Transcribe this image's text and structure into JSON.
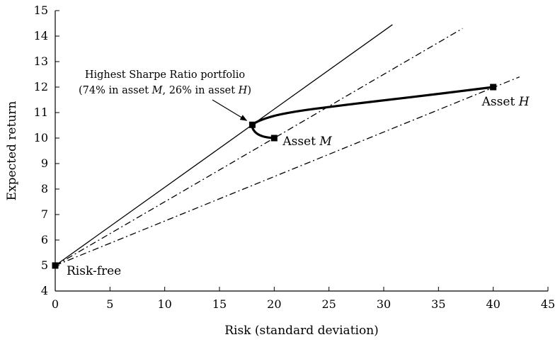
{
  "chart_data": {
    "type": "line",
    "xlabel": "Risk (standard deviation)",
    "ylabel": "Expected return",
    "xlim": [
      0,
      45
    ],
    "ylim": [
      4,
      15
    ],
    "x_ticks": [
      0,
      5,
      10,
      15,
      20,
      25,
      30,
      35,
      40,
      45
    ],
    "y_ticks": [
      4,
      5,
      6,
      7,
      8,
      9,
      10,
      11,
      12,
      13,
      14,
      15
    ],
    "grid": false,
    "points": [
      {
        "label": "Risk-free",
        "x": 0,
        "y": 5
      },
      {
        "label_prefix": "Asset ",
        "label_italic": "M",
        "x": 20,
        "y": 10
      },
      {
        "label_prefix": "Asset ",
        "label_italic": "H",
        "x": 40,
        "y": 12
      },
      {
        "x": 18,
        "y": 10.52
      }
    ],
    "lines": [
      {
        "style": "solid",
        "from": [
          0,
          5
        ],
        "to": [
          30.8,
          14.45
        ]
      },
      {
        "style": "dash-dot",
        "from": [
          0,
          5
        ],
        "to": [
          37.2,
          14.3
        ]
      },
      {
        "style": "dash-dot",
        "from": [
          0,
          5
        ],
        "to": [
          42.4,
          12.4
        ]
      }
    ],
    "frontier": {
      "style": "thick-solid",
      "points": [
        [
          20,
          10
        ],
        [
          19.2,
          10.03
        ],
        [
          18.6,
          10.12
        ],
        [
          18.2,
          10.25
        ],
        [
          18.0,
          10.4
        ],
        [
          18.0,
          10.52
        ],
        [
          18.4,
          10.64
        ],
        [
          19.3,
          10.79
        ],
        [
          20.5,
          10.93
        ],
        [
          22.5,
          11.08
        ],
        [
          25,
          11.22
        ],
        [
          28,
          11.38
        ],
        [
          31,
          11.53
        ],
        [
          34,
          11.68
        ],
        [
          37,
          11.84
        ],
        [
          40,
          12
        ]
      ]
    },
    "annotation": {
      "line1": "Highest Sharpe Ratio portfolio",
      "line2_a": "(74% in asset ",
      "line2_b": "M",
      "line2_c": ", 26% in asset ",
      "line2_d": "H",
      "line2_e": ")",
      "arrow_to": [
        18,
        10.52
      ]
    }
  }
}
